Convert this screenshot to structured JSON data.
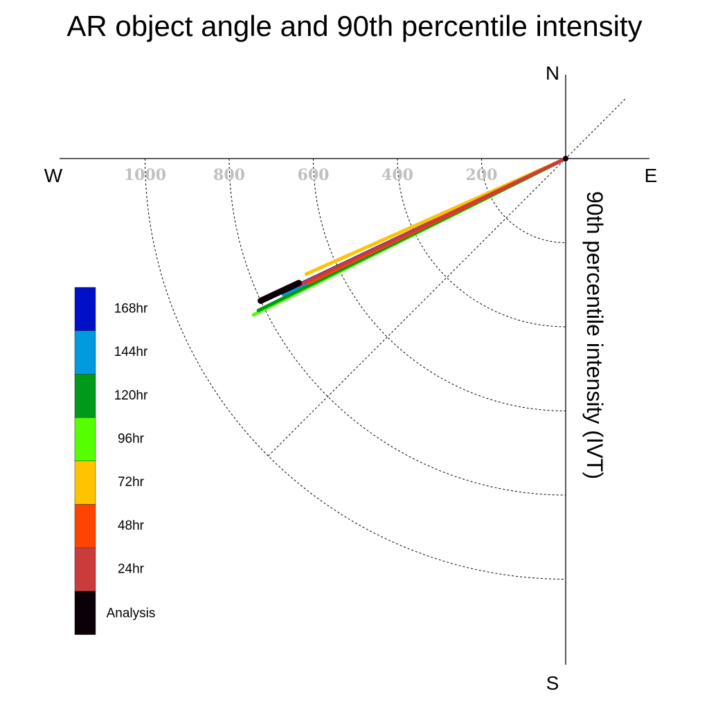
{
  "title": "AR object angle and 90th percentile intensity",
  "chart_data": {
    "type": "polar-line",
    "title": "AR object angle and 90th percentile intensity",
    "radial_label": "90th percentile intensity (IVT)",
    "compass": {
      "north": "N",
      "south": "S",
      "east": "E",
      "west": "W"
    },
    "radial_ticks": [
      200,
      400,
      600,
      800,
      1000
    ],
    "radial_tick_labels": [
      "200",
      "400",
      "600",
      "800",
      "1000"
    ],
    "angle_unit": "degrees counterclockwise from East",
    "series": [
      {
        "name": "Analysis",
        "color": "#0b0008",
        "angle": 205.0,
        "intensity_start": 700,
        "intensity_end": 800
      },
      {
        "name": "24hr",
        "color": "#cc3b3b",
        "angle": 205.4,
        "intensity_start": 0,
        "intensity_end": 705
      },
      {
        "name": "48hr",
        "color": "#ff4300",
        "angle": 205.8,
        "intensity_start": 0,
        "intensity_end": 680
      },
      {
        "name": "72hr",
        "color": "#ffc300",
        "angle": 204.0,
        "intensity_start": 0,
        "intensity_end": 675
      },
      {
        "name": "96hr",
        "color": "#55ff00",
        "angle": 206.6,
        "intensity_start": 0,
        "intensity_end": 830
      },
      {
        "name": "120hr",
        "color": "#009a1a",
        "angle": 206.3,
        "intensity_start": 0,
        "intensity_end": 815
      },
      {
        "name": "144hr",
        "color": "#009ade",
        "angle": 205.7,
        "intensity_start": 0,
        "intensity_end": 745
      },
      {
        "name": "168hr",
        "color": "#0010c8",
        "angle": 205.3,
        "intensity_start": 0,
        "intensity_end": 740
      }
    ]
  },
  "legend": {
    "order": [
      "168hr",
      "144hr",
      "120hr",
      "96hr",
      "72hr",
      "48hr",
      "24hr",
      "Analysis"
    ]
  }
}
